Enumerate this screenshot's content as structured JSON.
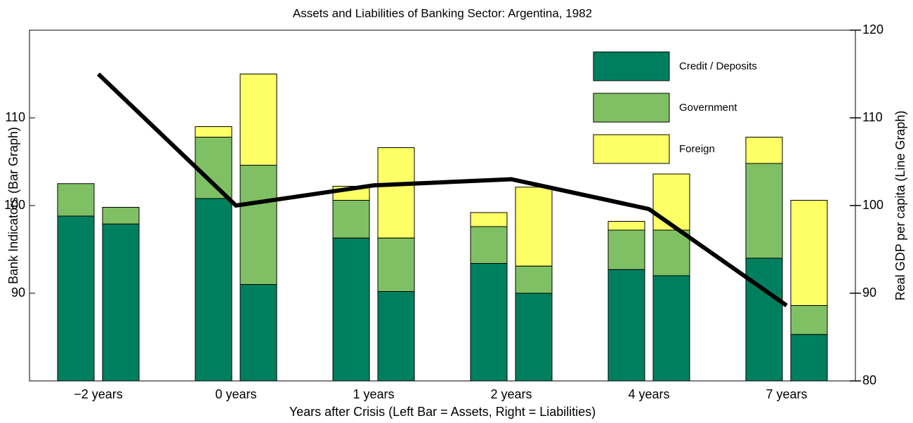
{
  "chart_data": {
    "type": "bar",
    "title": "Assets and Liabilities of Banking Sector: Argentina, 1982",
    "xlabel": "Years after Crisis (Left Bar = Assets, Right = Liabilities)",
    "ylabel": "Bank Indicators (Bar Graph)",
    "y2label": "Real GDP per capita (Line Graph)",
    "categories": [
      "−2 years",
      "0 years",
      "1 years",
      "2 years",
      "4 years",
      "7 years"
    ],
    "series": [
      {
        "name": "Credit / Deposits",
        "color": "#007f5f",
        "values": [
          [
            98.8,
            97.9
          ],
          [
            100.8,
            91.0
          ],
          [
            96.3,
            90.2
          ],
          [
            93.4,
            90.0
          ],
          [
            92.7,
            92.0
          ],
          [
            94.0,
            85.3
          ]
        ]
      },
      {
        "name": "Government",
        "color": "#80c064",
        "values": [
          [
            3.7,
            1.9
          ],
          [
            7.0,
            13.6
          ],
          [
            4.3,
            6.1
          ],
          [
            4.2,
            3.1
          ],
          [
            4.5,
            5.2
          ],
          [
            10.8,
            3.3
          ]
        ]
      },
      {
        "name": "Foreign",
        "color": "#ffff66",
        "values": [
          [
            0,
            0
          ],
          [
            1.2,
            10.4
          ],
          [
            1.6,
            10.3
          ],
          [
            1.6,
            9.0
          ],
          [
            1.0,
            6.4
          ],
          [
            3.0,
            12.0
          ]
        ]
      }
    ],
    "line": {
      "color": "#000000",
      "axis": "y2",
      "values": [
        115.0,
        100.0,
        102.3,
        103.0,
        99.6,
        88.6
      ]
    },
    "ylim": [
      80,
      120
    ],
    "yticks": [
      90,
      100,
      110
    ],
    "y2lim": [
      80,
      120
    ],
    "y2ticks": [
      80,
      90,
      100,
      110,
      120
    ]
  }
}
